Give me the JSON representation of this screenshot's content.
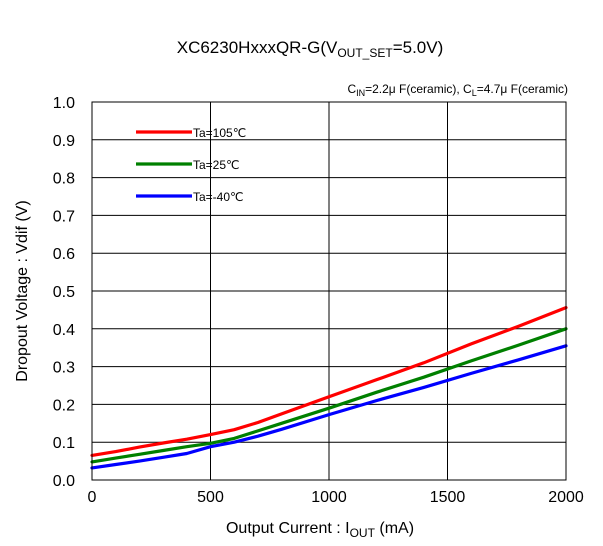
{
  "chart_data": {
    "type": "line",
    "title": {
      "main": "XC6230HxxxQR-G(V",
      "sub": "OUT_SET",
      "tail": "=5.0V)"
    },
    "conditions": {
      "p1": "C",
      "p1_sub": "IN",
      "p2": "=2.2μ F(ceramic), C",
      "p2_sub": "L",
      "p3": "=4.7μ F(ceramic)"
    },
    "xlabel": {
      "main": "Output Current : I",
      "sub": "OUT",
      "tail": " (mA)"
    },
    "ylabel": "Dropout Voltage : Vdif (V)",
    "xlim": [
      0,
      2000
    ],
    "ylim": [
      0.0,
      1.0
    ],
    "xticks": [
      0,
      500,
      1000,
      1500,
      2000
    ],
    "yticks": [
      0.0,
      0.1,
      0.2,
      0.3,
      0.4,
      0.5,
      0.6,
      0.7,
      0.8,
      0.9,
      1.0
    ],
    "yticklabels": [
      "0.0",
      "0.1",
      "0.2",
      "0.3",
      "0.4",
      "0.5",
      "0.6",
      "0.7",
      "0.8",
      "0.9",
      "1.0"
    ],
    "xticklabels": [
      "0",
      "500",
      "1000",
      "1500",
      "2000"
    ],
    "grid": true,
    "legend_position": "top-left",
    "series": [
      {
        "name": "Ta=105℃",
        "color": "#ff0000",
        "x": [
          0,
          100,
          200,
          300,
          400,
          500,
          600,
          700,
          800,
          1000,
          1200,
          1400,
          1600,
          1800,
          2000
        ],
        "y": [
          0.065,
          0.075,
          0.087,
          0.098,
          0.108,
          0.12,
          0.133,
          0.152,
          0.175,
          0.22,
          0.265,
          0.31,
          0.36,
          0.407,
          0.456
        ]
      },
      {
        "name": "Ta=25℃",
        "color": "#008000",
        "x": [
          0,
          100,
          200,
          300,
          400,
          500,
          600,
          700,
          800,
          1000,
          1200,
          1400,
          1600,
          1800,
          2000
        ],
        "y": [
          0.048,
          0.058,
          0.068,
          0.078,
          0.088,
          0.097,
          0.11,
          0.13,
          0.15,
          0.19,
          0.232,
          0.272,
          0.315,
          0.357,
          0.4
        ]
      },
      {
        "name": "Ta=-40℃",
        "color": "#0000ff",
        "x": [
          0,
          100,
          200,
          300,
          400,
          500,
          600,
          700,
          800,
          1000,
          1200,
          1400,
          1600,
          1800,
          2000
        ],
        "y": [
          0.032,
          0.041,
          0.05,
          0.06,
          0.07,
          0.088,
          0.1,
          0.116,
          0.134,
          0.173,
          0.21,
          0.245,
          0.282,
          0.318,
          0.355
        ]
      }
    ]
  }
}
